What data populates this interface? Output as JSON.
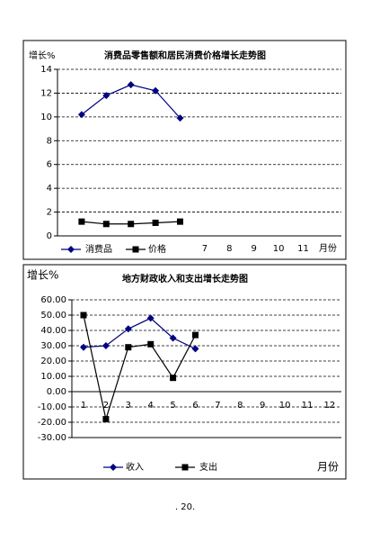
{
  "chart_data": [
    {
      "type": "line",
      "title": "消费品零售额和居民消费价格增长走势图",
      "y_label": "增长%",
      "x_label": "月份",
      "categories": [
        null,
        null,
        null,
        null,
        null,
        null,
        "7",
        "8",
        "9",
        "10",
        "11",
        null
      ],
      "series": [
        {
          "name": "消费品",
          "color": "#000080",
          "values": [
            null,
            10.2,
            11.8,
            12.7,
            12.2,
            9.9,
            null,
            null,
            null,
            null,
            null,
            null
          ]
        },
        {
          "name": "价格",
          "color": "#000000",
          "values": [
            null,
            1.2,
            1.0,
            1.0,
            1.1,
            1.2,
            null,
            null,
            null,
            null,
            null,
            null
          ]
        }
      ],
      "ylim": [
        0,
        14
      ],
      "yticks": [
        0,
        2,
        4,
        6,
        8,
        10,
        12,
        14
      ],
      "grid": true
    },
    {
      "type": "line",
      "title": "地方财政收入和支出增长走势图",
      "y_label": "增长%",
      "x_label": "月份",
      "categories": [
        "1",
        "2",
        "3",
        "4",
        "5",
        "6",
        "7",
        "8",
        "9",
        "10",
        "11",
        "12"
      ],
      "series": [
        {
          "name": "收入",
          "color": "#000080",
          "values": [
            29,
            30,
            41,
            48,
            35,
            28,
            null,
            null,
            null,
            null,
            null,
            null
          ]
        },
        {
          "name": "支出",
          "color": "#000000",
          "values": [
            50,
            -18,
            29,
            31,
            9,
            37,
            null,
            null,
            null,
            null,
            null,
            null
          ]
        }
      ],
      "ylim": [
        -30,
        60
      ],
      "yticks": [
        {
          "value": -30,
          "label": "-30.00"
        },
        {
          "value": -20,
          "label": "-20.00"
        },
        {
          "value": -10,
          "label": "-10.00"
        },
        {
          "value": 0,
          "label": "0.00"
        },
        {
          "value": 10,
          "label": "10.00"
        },
        {
          "value": 20,
          "label": "20.00"
        },
        {
          "value": 30,
          "label": "30.00"
        },
        {
          "value": 40,
          "label": "40.00"
        },
        {
          "value": 50,
          "label": "50.00"
        },
        {
          "value": 60,
          "label": "60.00"
        }
      ],
      "grid": true
    }
  ],
  "footer": ". 20."
}
